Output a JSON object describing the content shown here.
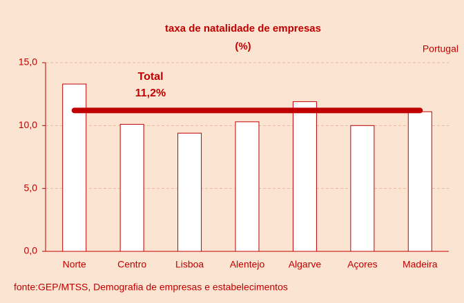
{
  "chart_data": {
    "type": "bar",
    "title": "taxa de natalidade de empresas",
    "subtitle": "(%)",
    "annotation": "Portugal",
    "source": "fonte:GEP/MTSS, Demografia de empresas e estabelecimentos",
    "categories": [
      "Norte",
      "Centro",
      "Lisboa",
      "Alentejo",
      "Algarve",
      "Açores",
      "Madeira"
    ],
    "values": [
      13.3,
      10.1,
      9.4,
      10.3,
      11.9,
      10.0,
      11.1
    ],
    "color": "#ffffff",
    "edge_color": "#c00000",
    "reference": {
      "name": "Total",
      "value": 11.2,
      "value_label": "11,2%",
      "color": "#c00000"
    },
    "ylim": [
      0,
      15
    ],
    "yticks": [
      {
        "value": 0,
        "label": "0,0"
      },
      {
        "value": 5,
        "label": "5,0"
      },
      {
        "value": 10,
        "label": "10,0"
      },
      {
        "value": 15,
        "label": "15,0"
      }
    ],
    "grid": true
  }
}
